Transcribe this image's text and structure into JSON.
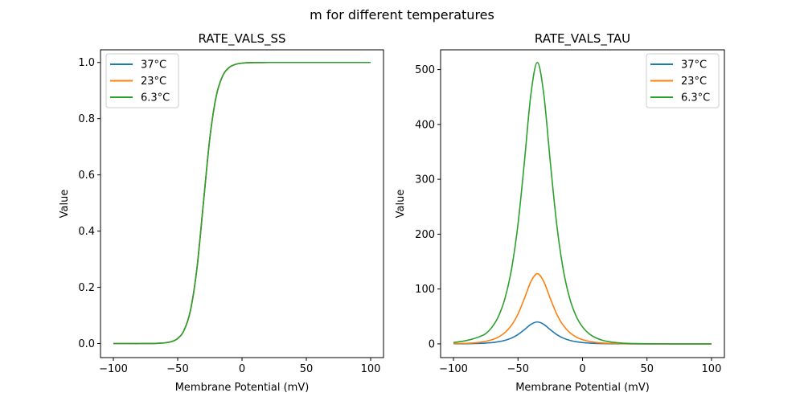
{
  "suptitle": "m for different temperatures",
  "colors": {
    "37°C": "#1f77b4",
    "23°C": "#ff7f0e",
    "6.3°C": "#2ca02c"
  },
  "chart_data": [
    {
      "type": "line",
      "title": "RATE_VALS_SS",
      "xlabel": "Membrane Potential (mV)",
      "ylabel": "Value",
      "xlim": [
        -110,
        110
      ],
      "ylim": [
        -0.05,
        1.045
      ],
      "xticks": [
        -100,
        -50,
        0,
        50,
        100
      ],
      "xtick_labels": [
        "−100",
        "−50",
        "0",
        "50",
        "100"
      ],
      "yticks": [
        0,
        0.2,
        0.4,
        0.6,
        0.8,
        1.0
      ],
      "ytick_labels": [
        "0.0",
        "0.2",
        "0.4",
        "0.6",
        "0.8",
        "1.0"
      ],
      "grid": false,
      "legend": "upper-left",
      "x": [
        -100,
        -95,
        -90,
        -85,
        -80,
        -75,
        -70,
        -65,
        -60,
        -55,
        -50,
        -45,
        -40,
        -35,
        -30,
        -25,
        -20,
        -15,
        -10,
        -5,
        0,
        5,
        10,
        15,
        20,
        25,
        30,
        35,
        40,
        45,
        50,
        55,
        60,
        65,
        70,
        75,
        80,
        85,
        90,
        95,
        100
      ],
      "series": [
        {
          "name": "37°C",
          "values": [
            0,
            0,
            0,
            0,
            0,
            0.0001,
            0.0003,
            0.0009,
            0.0025,
            0.0067,
            0.018,
            0.0474,
            0.1192,
            0.2689,
            0.5,
            0.7311,
            0.8808,
            0.9526,
            0.982,
            0.9933,
            0.9975,
            0.9991,
            0.9997,
            0.9999,
            1,
            1,
            1,
            1,
            1,
            1,
            1,
            1,
            1,
            1,
            1,
            1,
            1,
            1,
            1,
            1,
            1
          ]
        },
        {
          "name": "23°C",
          "values": [
            0,
            0,
            0,
            0,
            0,
            0.0001,
            0.0003,
            0.0009,
            0.0025,
            0.0067,
            0.018,
            0.0474,
            0.1192,
            0.2689,
            0.5,
            0.7311,
            0.8808,
            0.9526,
            0.982,
            0.9933,
            0.9975,
            0.9991,
            0.9997,
            0.9999,
            1,
            1,
            1,
            1,
            1,
            1,
            1,
            1,
            1,
            1,
            1,
            1,
            1,
            1,
            1,
            1,
            1
          ]
        },
        {
          "name": "6.3°C",
          "values": [
            0,
            0,
            0,
            0,
            0,
            0.0001,
            0.0003,
            0.0009,
            0.0025,
            0.0067,
            0.018,
            0.0474,
            0.1192,
            0.2689,
            0.5,
            0.7311,
            0.8808,
            0.9526,
            0.982,
            0.9933,
            0.9975,
            0.9991,
            0.9997,
            0.9999,
            1,
            1,
            1,
            1,
            1,
            1,
            1,
            1,
            1,
            1,
            1,
            1,
            1,
            1,
            1,
            1,
            1
          ]
        }
      ]
    },
    {
      "type": "line",
      "title": "RATE_VALS_TAU",
      "xlabel": "Membrane Potential (mV)",
      "ylabel": "Value",
      "xlim": [
        -110,
        110
      ],
      "ylim": [
        -25,
        536
      ],
      "xticks": [
        -100,
        -50,
        0,
        50,
        100
      ],
      "xtick_labels": [
        "−100",
        "−50",
        "0",
        "50",
        "100"
      ],
      "yticks": [
        0,
        100,
        200,
        300,
        400,
        500
      ],
      "ytick_labels": [
        "0",
        "100",
        "200",
        "300",
        "400",
        "500"
      ],
      "grid": false,
      "legend": "upper-right",
      "x": [
        -100,
        -95,
        -90,
        -85,
        -80,
        -75,
        -70,
        -65,
        -60,
        -55,
        -50,
        -45,
        -40,
        -35,
        -30,
        -25,
        -20,
        -15,
        -10,
        -5,
        0,
        5,
        10,
        15,
        20,
        25,
        30,
        35,
        40,
        45,
        50,
        55,
        60,
        65,
        70,
        75,
        80,
        85,
        90,
        95,
        100
      ],
      "series": [
        {
          "name": "37°C",
          "values": [
            0.1,
            0.2,
            0.3,
            0.5,
            0.9,
            1.5,
            2.4,
            4.0,
            6.5,
            10.6,
            17.0,
            25.9,
            35.5,
            40,
            35.5,
            25.9,
            17.0,
            10.6,
            6.5,
            4.0,
            2.4,
            1.5,
            0.9,
            0.5,
            0.3,
            0.2,
            0.1,
            0.1,
            0,
            0,
            0,
            0,
            0,
            0,
            0,
            0,
            0,
            0,
            0,
            0,
            0
          ]
        },
        {
          "name": "23°C",
          "values": [
            0.4,
            0.6,
            1.0,
            1.7,
            2.8,
            4.7,
            7.7,
            12.7,
            20.9,
            34.0,
            54.4,
            83.0,
            113.5,
            128,
            113.5,
            83.0,
            54.4,
            34.0,
            20.9,
            12.7,
            7.7,
            4.7,
            2.8,
            1.7,
            1.0,
            0.6,
            0.4,
            0.2,
            0.1,
            0.1,
            0.1,
            0,
            0,
            0,
            0,
            0,
            0,
            0,
            0,
            0,
            0
          ]
        },
        {
          "name": "6.3°C",
          "values": [
            2.5,
            4.0,
            6.0,
            9.0,
            13.0,
            18.8,
            30.9,
            50.9,
            83.7,
            136.4,
            218.1,
            332.5,
            454.9,
            513,
            454.9,
            332.5,
            218.1,
            136.4,
            83.7,
            50.9,
            30.9,
            18.8,
            11.4,
            6.9,
            4.2,
            2.5,
            1.5,
            0.9,
            0.6,
            0.4,
            0.2,
            0.2,
            0.1,
            0.1,
            0,
            0,
            0,
            0,
            0,
            0,
            0
          ]
        }
      ]
    }
  ]
}
